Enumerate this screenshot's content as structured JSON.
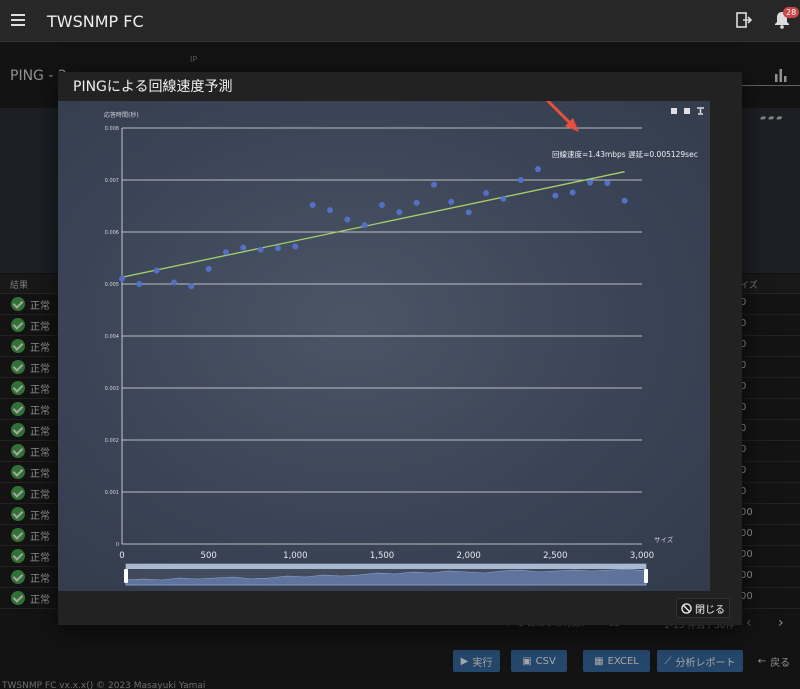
{
  "app": {
    "title": "TWSNMP FC",
    "notification_count": "28"
  },
  "background": {
    "ip_label": "IP",
    "page_title": "PING - 2",
    "table": {
      "col_result": "結果",
      "col_size": "イズ",
      "rows": [
        {
          "status": "正常",
          "size": "0"
        },
        {
          "status": "正常",
          "size": "0"
        },
        {
          "status": "正常",
          "size": "0"
        },
        {
          "status": "正常",
          "size": "0"
        },
        {
          "status": "正常",
          "size": "0"
        },
        {
          "status": "正常",
          "size": "0"
        },
        {
          "status": "正常",
          "size": "0"
        },
        {
          "status": "正常",
          "size": "0"
        },
        {
          "status": "正常",
          "size": "0"
        },
        {
          "status": "正常",
          "size": "0"
        },
        {
          "status": "正常",
          "size": "00"
        },
        {
          "status": "正常",
          "size": "00"
        },
        {
          "status": "正常",
          "size": "00"
        },
        {
          "status": "正常",
          "size": "00"
        },
        {
          "status": "正常",
          "size": "00"
        }
      ]
    },
    "rows_per_page_label": "ページあたりの行数：",
    "rows_per_page_value": "15",
    "pagination_text": "1-15 件目 / 30件"
  },
  "buttons": {
    "run": "実行",
    "csv": "CSV",
    "excel": "EXCEL",
    "report": "分析レポート",
    "back": "戻る"
  },
  "copyright": "TWSNMP FC vx.x.x() © 2023 Masayuki Yamai",
  "dialog": {
    "title": "PINGによる回線速度予測",
    "close_label": "閉じる",
    "annotation": "回線速度=1.43mbps 遅延=0.005129sec"
  },
  "chart_data": {
    "type": "scatter",
    "title": "",
    "xlabel": "サイズ",
    "ylabel": "応答時間(秒)",
    "xlim": [
      0,
      3000
    ],
    "ylim": [
      0,
      0.008
    ],
    "x_ticks": [
      "0",
      "500",
      "1,000",
      "1,500",
      "2,000",
      "2,500",
      "3,000"
    ],
    "y_ticks": [
      "0",
      "0.001",
      "0.002",
      "0.003",
      "0.004",
      "0.005",
      "0.006",
      "0.007",
      "0.008"
    ],
    "series": [
      {
        "points": [
          [
            0,
            0.0051
          ],
          [
            100,
            0.005
          ],
          [
            200,
            0.00526
          ],
          [
            300,
            0.00503
          ],
          [
            400,
            0.00496
          ],
          [
            500,
            0.00529
          ],
          [
            600,
            0.00561
          ],
          [
            700,
            0.0057
          ],
          [
            800,
            0.00566
          ],
          [
            900,
            0.00569
          ],
          [
            1000,
            0.00572
          ],
          [
            1100,
            0.00652
          ],
          [
            1200,
            0.00642
          ],
          [
            1300,
            0.00624
          ],
          [
            1400,
            0.00613
          ],
          [
            1500,
            0.00652
          ],
          [
            1600,
            0.00638
          ],
          [
            1700,
            0.00656
          ],
          [
            1800,
            0.00691
          ],
          [
            1900,
            0.00658
          ],
          [
            2000,
            0.00638
          ],
          [
            2100,
            0.00675
          ],
          [
            2200,
            0.00664
          ],
          [
            2300,
            0.007
          ],
          [
            2400,
            0.00721
          ],
          [
            2500,
            0.0067
          ],
          [
            2600,
            0.00676
          ],
          [
            2700,
            0.00695
          ],
          [
            2800,
            0.00694
          ],
          [
            2900,
            0.0066
          ]
        ]
      }
    ],
    "regression_line": [
      [
        0,
        0.00513
      ],
      [
        2900,
        0.00716
      ]
    ],
    "grid": true,
    "colors": {
      "points": "#5470c6",
      "line": "#a6d068"
    }
  }
}
